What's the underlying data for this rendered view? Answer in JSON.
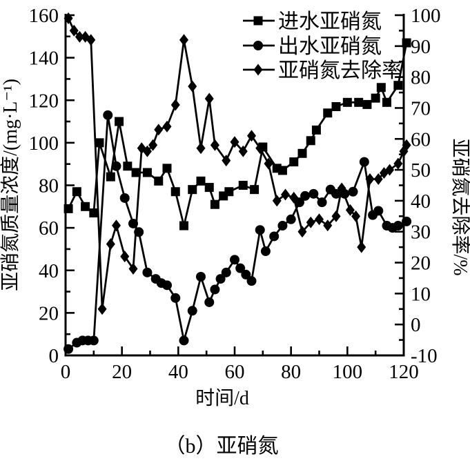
{
  "figure": {
    "caption": "（b）亚硝氮"
  },
  "chart_data": {
    "type": "line",
    "title": "",
    "xlabel": "时间/d",
    "ylabel_left": "亚硝氮质量浓度/(mg·L⁻¹)",
    "ylabel_right": "亚硝氮去除率/%",
    "x_range": [
      0,
      120
    ],
    "y_left_range": [
      0,
      160
    ],
    "y_right_range": [
      -10,
      100
    ],
    "x_ticks": [
      0,
      20,
      40,
      60,
      80,
      100,
      120
    ],
    "y_left_ticks": [
      0,
      20,
      40,
      60,
      80,
      100,
      120,
      140,
      160
    ],
    "y_right_ticks": [
      -10,
      0,
      10,
      20,
      30,
      40,
      50,
      60,
      70,
      80,
      90,
      100
    ],
    "grid": false,
    "legend_position": "top-right-inside",
    "line_color": "#000000",
    "background_color": "#ffffff",
    "series": [
      {
        "name": "进水亚硝氮",
        "marker": "square",
        "axis": "left",
        "x": [
          1,
          4,
          7,
          10,
          12,
          16,
          19,
          22,
          25,
          29,
          33,
          36,
          39,
          42,
          45,
          48,
          51,
          53,
          56,
          58,
          63,
          67,
          70,
          75,
          77,
          81,
          84,
          87,
          89,
          93,
          96,
          100,
          104,
          107,
          110,
          112,
          114,
          118,
          121
        ],
        "y": [
          69,
          77,
          70,
          67,
          100,
          84,
          110,
          89,
          86,
          86,
          82,
          88,
          77,
          61,
          78,
          82,
          79,
          71,
          75,
          77,
          80,
          78,
          98,
          88,
          87,
          91,
          95,
          101,
          106,
          114,
          117,
          119,
          119,
          118,
          121,
          126,
          119,
          127,
          147
        ]
      },
      {
        "name": "出水亚硝氮",
        "marker": "circle",
        "axis": "left",
        "x": [
          1,
          4,
          6,
          8,
          10,
          15,
          18,
          21,
          24,
          26,
          29,
          32,
          34,
          36,
          39,
          42,
          45,
          48,
          51,
          53,
          55,
          57,
          60,
          62,
          64,
          66,
          69,
          71,
          74,
          77,
          80,
          83,
          85,
          88,
          91,
          94,
          96,
          99,
          102,
          106,
          109,
          111,
          114,
          116,
          118,
          121
        ],
        "y": [
          3,
          6,
          7,
          7,
          7,
          113,
          89,
          74,
          62,
          58,
          39,
          36,
          34,
          33,
          27,
          7,
          21,
          37,
          25,
          31,
          36,
          39,
          45,
          41,
          38,
          35,
          59,
          49,
          56,
          61,
          64,
          72,
          75,
          76,
          72,
          78,
          76,
          76,
          77,
          91,
          66,
          68,
          61,
          60,
          61,
          63
        ]
      },
      {
        "name": "亚硝氮去除率",
        "marker": "diamond",
        "axis": "right",
        "x": [
          1,
          3,
          5,
          7,
          9,
          13,
          16,
          18,
          21,
          24,
          27,
          29,
          31,
          33,
          36,
          39,
          42,
          45,
          48,
          51,
          53,
          57,
          60,
          63,
          66,
          69,
          72,
          75,
          78,
          81,
          84,
          87,
          90,
          93,
          96,
          98,
          101,
          103,
          105,
          108,
          111,
          113,
          115,
          118,
          120,
          121
        ],
        "y": [
          99,
          95,
          93,
          93,
          92,
          5,
          26,
          32,
          22,
          18,
          57,
          56,
          58,
          63,
          64,
          71,
          92,
          77,
          57,
          73,
          58,
          53,
          59,
          56,
          61,
          57,
          52,
          40,
          42,
          41,
          30,
          33,
          34,
          32,
          35,
          44,
          37,
          35,
          25,
          47,
          47,
          49,
          50,
          52,
          56,
          58
        ]
      }
    ]
  }
}
